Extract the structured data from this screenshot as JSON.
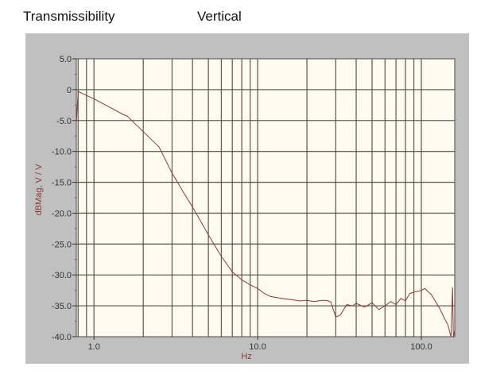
{
  "header": {
    "title": "Transmissibility",
    "subtitle": "Vertical"
  },
  "colors": {
    "panel_bg": "#c0c0c0",
    "plot_bg": "#fffbef",
    "grid": "#4a4a40",
    "trace": "#8b3a3a",
    "axis_label": "#8b3a3a"
  },
  "chart_data": {
    "type": "line",
    "title": "Transmissibility",
    "subtitle": "Vertical",
    "xlabel": "Hz",
    "ylabel": "dBMag, V / V",
    "xscale": "log",
    "xlim": [
      0.78,
      160
    ],
    "ylim": [
      -40,
      5
    ],
    "grid": true,
    "x_tick_labels": [
      "1.0",
      "10.0",
      "100.0"
    ],
    "y_tick_labels": [
      "5.0",
      "0",
      "-5.0",
      "-10.0",
      "-15.0",
      "-20.0",
      "-25.0",
      "-30.0",
      "-35.0",
      "-40.0"
    ],
    "series": [
      {
        "name": "Transmissibility (Vertical)",
        "x": [
          0.78,
          0.8,
          1.0,
          1.2,
          1.5,
          1.6,
          2.0,
          2.5,
          3.0,
          3.5,
          4.0,
          5.0,
          6.0,
          7.0,
          8.0,
          9.0,
          10.0,
          11.0,
          12.0,
          14.0,
          16.0,
          18.0,
          20.0,
          22.0,
          25.0,
          27.0,
          28.0,
          30.0,
          32.0,
          35.0,
          38.0,
          40.0,
          45.0,
          50.0,
          55.0,
          60.0,
          65.0,
          70.0,
          75.0,
          80.0,
          85.0,
          90.0,
          100.0,
          105.0,
          110.0,
          115.0,
          120.0,
          130.0,
          140.0,
          145.0,
          150.0,
          152.0,
          155.0,
          157.0,
          160.0
        ],
        "y": [
          -5.5,
          -0.3,
          -1.5,
          -2.6,
          -4.0,
          -4.3,
          -6.8,
          -9.3,
          -13.5,
          -16.5,
          -19.0,
          -23.5,
          -27.0,
          -29.5,
          -30.8,
          -31.6,
          -32.2,
          -33.0,
          -33.5,
          -33.8,
          -34.0,
          -34.2,
          -34.1,
          -34.3,
          -34.1,
          -34.2,
          -34.4,
          -36.8,
          -36.5,
          -34.8,
          -35.0,
          -34.6,
          -35.2,
          -34.5,
          -35.6,
          -35.0,
          -34.3,
          -34.8,
          -33.8,
          -34.2,
          -33.0,
          -32.8,
          -32.5,
          -32.2,
          -32.7,
          -33.2,
          -34.0,
          -35.5,
          -37.3,
          -38.0,
          -39.5,
          -40.0,
          -32.0,
          -40.0,
          -39.0
        ]
      }
    ]
  }
}
